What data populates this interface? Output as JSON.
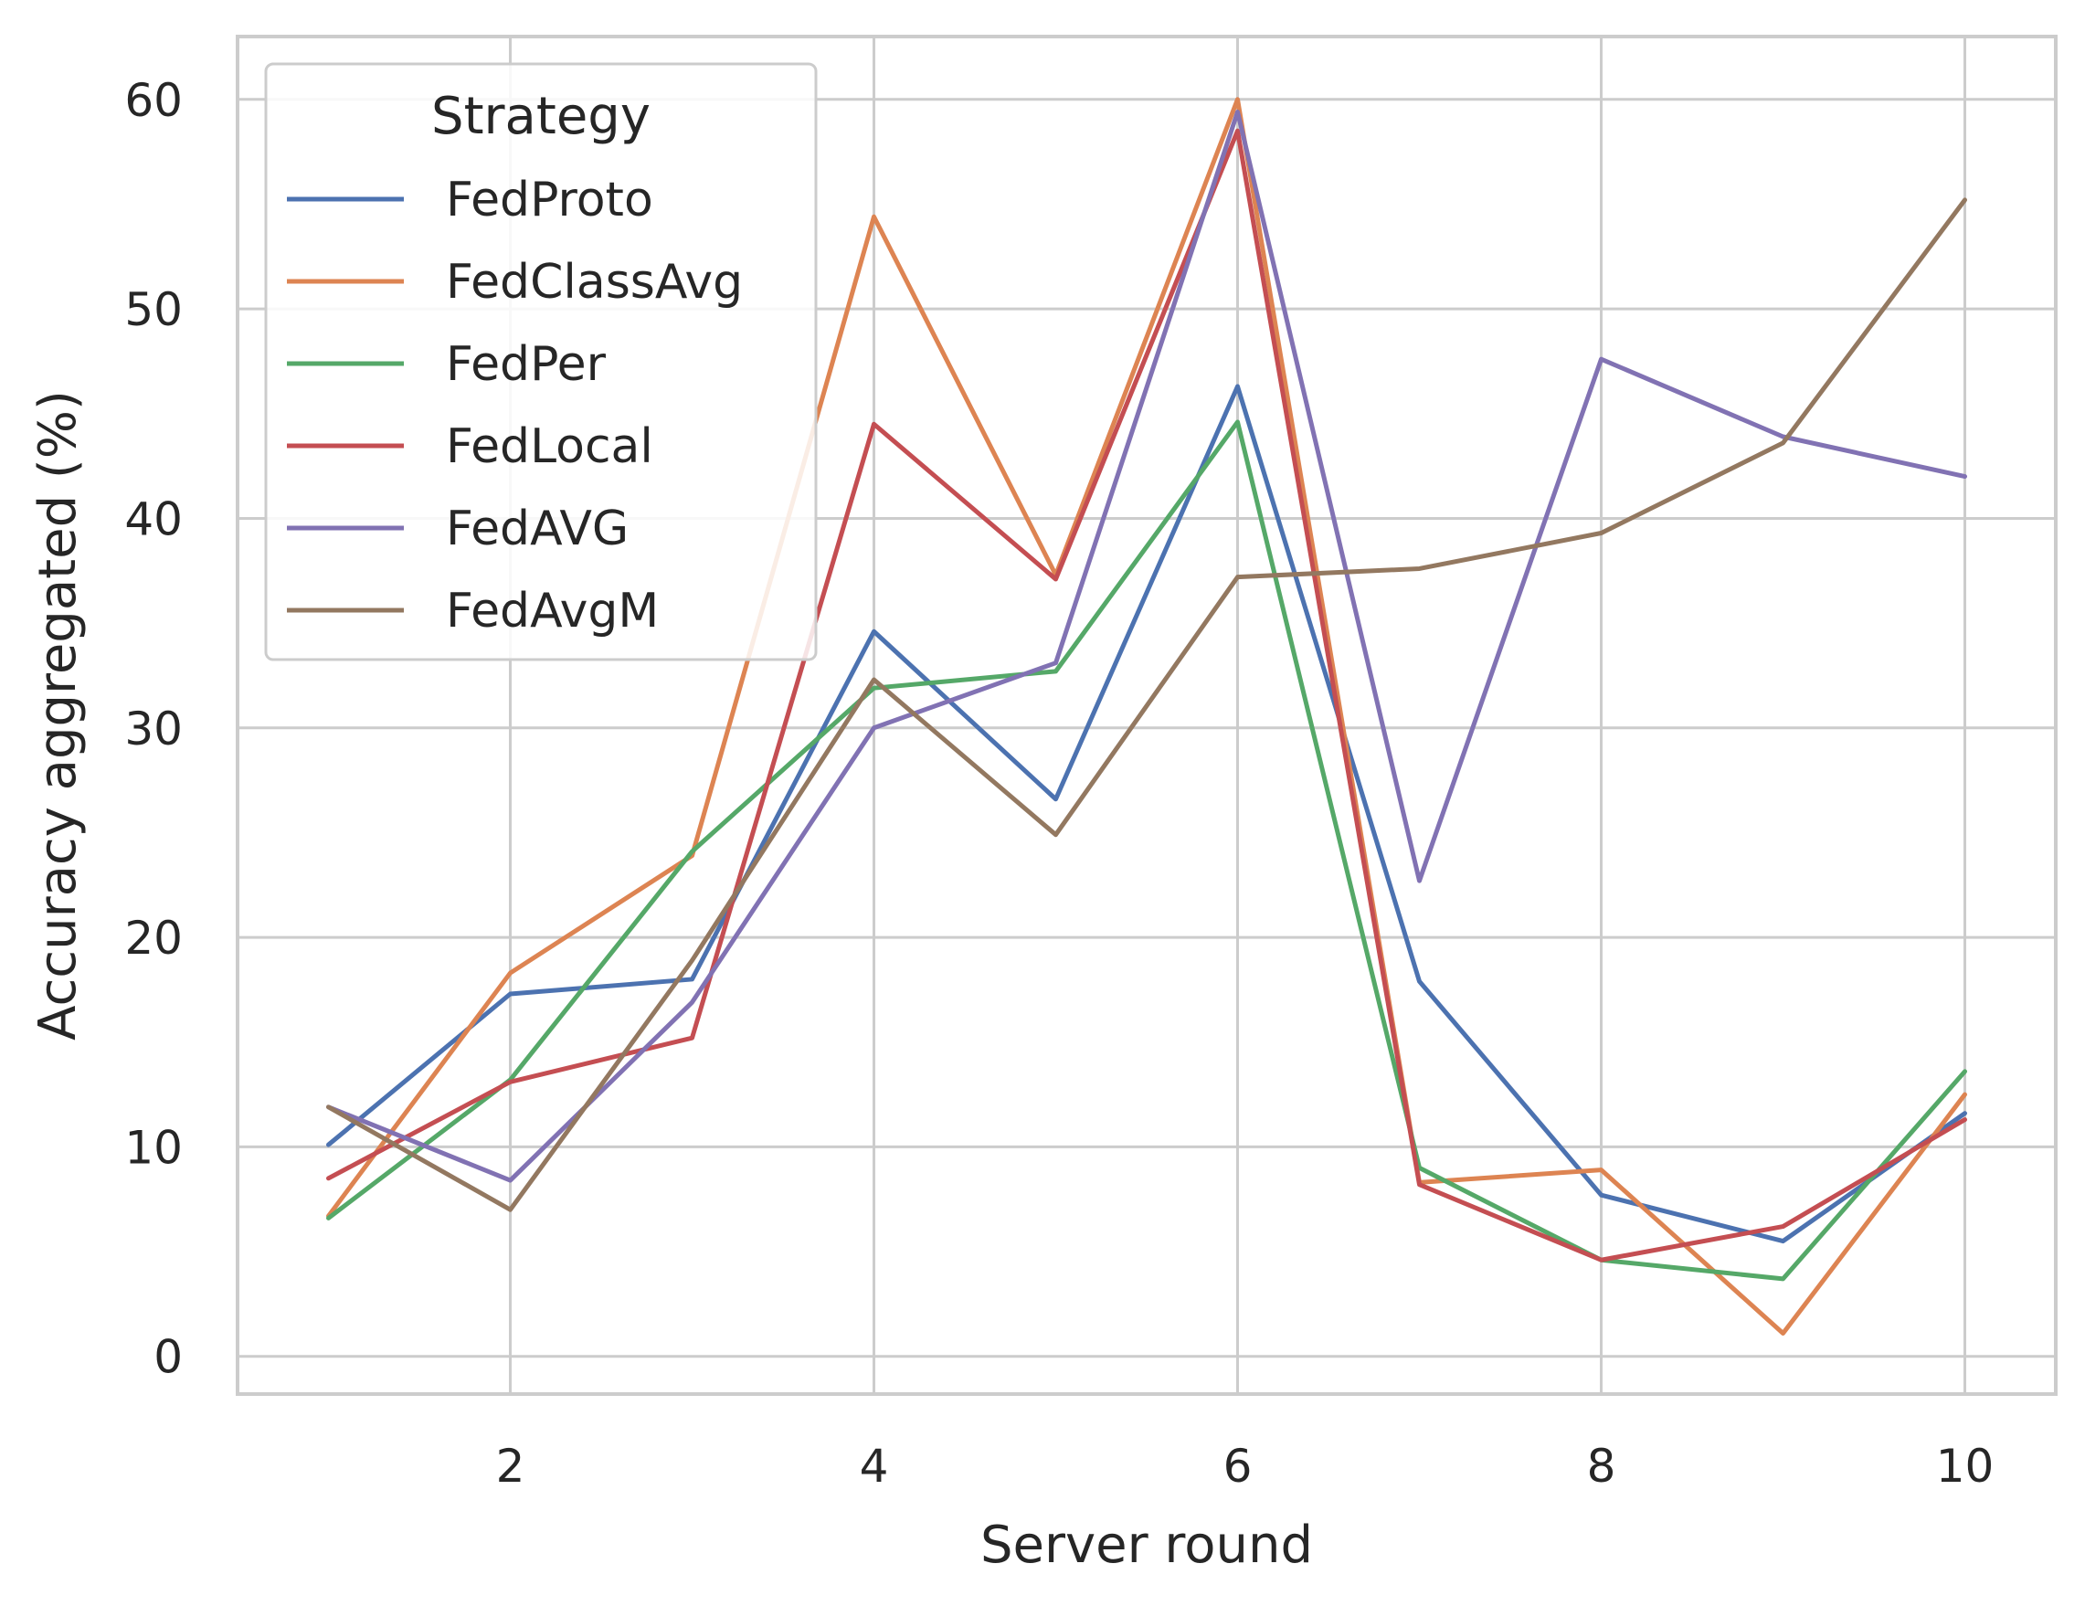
{
  "chart_data": {
    "type": "line",
    "xlabel": "Server round",
    "ylabel": "Accuracy aggregated (%)",
    "xlim": [
      0.5,
      10.5
    ],
    "ylim": [
      -1.8,
      63
    ],
    "x_ticks": [
      2,
      4,
      6,
      8,
      10
    ],
    "y_ticks": [
      0,
      10,
      20,
      30,
      40,
      50,
      60
    ],
    "grid": true,
    "legend": {
      "title": "Strategy",
      "placement": "top-left"
    },
    "x": [
      1,
      2,
      3,
      4,
      5,
      6,
      7,
      8,
      9,
      10
    ],
    "series": [
      {
        "name": "FedProto",
        "color": "#4c72b0",
        "values": [
          10.1,
          17.3,
          18.0,
          34.6,
          26.6,
          46.3,
          17.9,
          7.7,
          5.5,
          11.6
        ]
      },
      {
        "name": "FedClassAvg",
        "color": "#dd8452",
        "values": [
          6.7,
          18.3,
          23.9,
          54.4,
          37.3,
          60.0,
          8.3,
          8.9,
          1.1,
          12.5
        ]
      },
      {
        "name": "FedPer",
        "color": "#55a868",
        "values": [
          6.6,
          13.2,
          24.1,
          31.9,
          32.7,
          44.6,
          9.0,
          4.6,
          3.7,
          13.6
        ]
      },
      {
        "name": "FedLocal",
        "color": "#c44e52",
        "values": [
          8.5,
          13.1,
          15.2,
          44.5,
          37.1,
          58.5,
          8.2,
          4.6,
          6.2,
          11.3
        ]
      },
      {
        "name": "FedAVG",
        "color": "#8172b3",
        "values": [
          11.9,
          8.4,
          16.9,
          30.0,
          33.1,
          59.4,
          22.7,
          47.6,
          43.9,
          42.0
        ]
      },
      {
        "name": "FedAvgM",
        "color": "#937860",
        "values": [
          11.9,
          7.0,
          18.9,
          32.3,
          24.9,
          37.2,
          37.6,
          39.3,
          43.6,
          55.2
        ]
      }
    ]
  }
}
